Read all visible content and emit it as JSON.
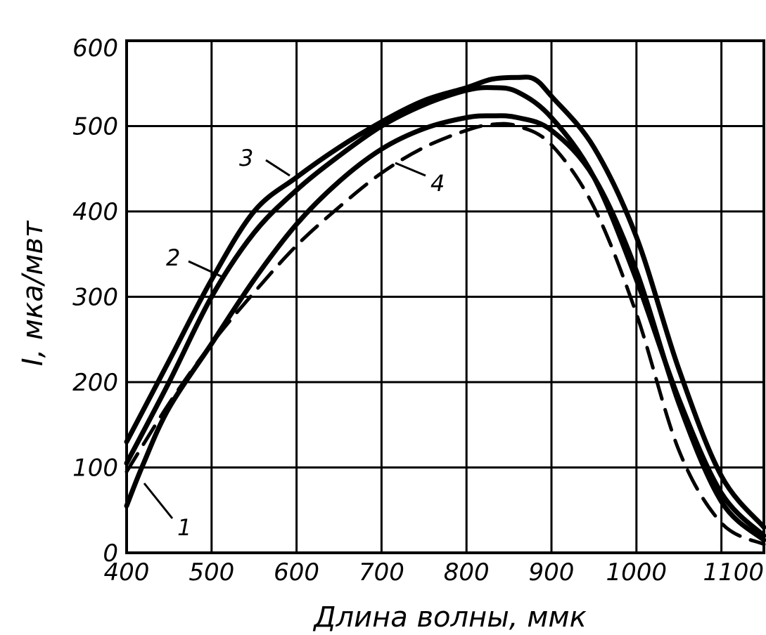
{
  "chart_data": {
    "type": "line",
    "xlabel": "Длина волны, ммк",
    "ylabel": "I, мка/мвт",
    "xlim": [
      400,
      1150
    ],
    "ylim": [
      0,
      600
    ],
    "x_ticks": [
      400,
      500,
      600,
      700,
      800,
      900,
      1000,
      1100
    ],
    "y_ticks": [
      0,
      100,
      200,
      300,
      400,
      500,
      600
    ],
    "x_tick_labels": [
      "400",
      "500",
      "600",
      "700",
      "800",
      "900",
      "1000",
      "1100"
    ],
    "y_tick_labels": [
      "0",
      "100",
      "200",
      "300",
      "400",
      "500",
      "600"
    ],
    "grid": true,
    "series": [
      {
        "name": "1",
        "style": "solid",
        "x": [
          400,
          420,
          450,
          500,
          550,
          600,
          650,
          700,
          750,
          800,
          830,
          860,
          900,
          950,
          1000,
          1050,
          1100,
          1150
        ],
        "y": [
          55,
          105,
          170,
          245,
          320,
          385,
          435,
          473,
          497,
          510,
          512,
          510,
          495,
          440,
          330,
          175,
          60,
          15
        ]
      },
      {
        "name": "2",
        "style": "solid",
        "x": [
          400,
          450,
          500,
          550,
          600,
          650,
          700,
          750,
          800,
          830,
          860,
          900,
          950,
          1000,
          1050,
          1100,
          1150
        ],
        "y": [
          105,
          200,
          300,
          375,
          425,
          465,
          500,
          525,
          542,
          545,
          540,
          510,
          440,
          320,
          180,
          70,
          20
        ]
      },
      {
        "name": "3",
        "style": "solid",
        "x": [
          400,
          450,
          500,
          550,
          600,
          650,
          700,
          750,
          800,
          830,
          860,
          880,
          900,
          950,
          1000,
          1050,
          1100,
          1150
        ],
        "y": [
          130,
          225,
          320,
          400,
          440,
          475,
          505,
          530,
          545,
          555,
          557,
          555,
          535,
          475,
          370,
          215,
          90,
          30
        ]
      },
      {
        "name": "4",
        "style": "dashed",
        "x": [
          400,
          450,
          500,
          550,
          600,
          650,
          700,
          750,
          800,
          830,
          860,
          900,
          950,
          1000,
          1050,
          1100,
          1150
        ],
        "y": [
          95,
          175,
          245,
          305,
          360,
          405,
          445,
          475,
          495,
          502,
          500,
          478,
          405,
          280,
          120,
          35,
          10
        ]
      }
    ],
    "curve_labels": [
      {
        "text": "1",
        "series": "1"
      },
      {
        "text": "2",
        "series": "2"
      },
      {
        "text": "3",
        "series": "3"
      },
      {
        "text": "4",
        "series": "4"
      }
    ],
    "colors": {
      "ink": "#000000",
      "background": "#ffffff"
    }
  }
}
